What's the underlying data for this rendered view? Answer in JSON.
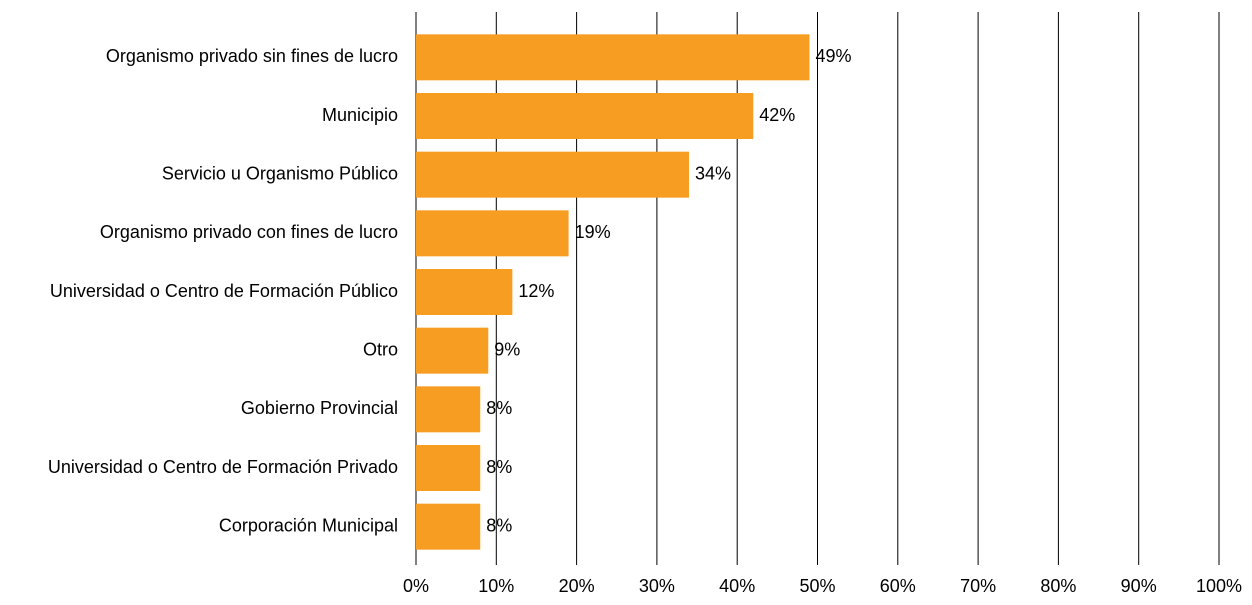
{
  "chart_data": {
    "type": "bar",
    "orientation": "horizontal",
    "categories": [
      "Organismo privado sin fines de lucro",
      "Municipio",
      "Servicio u Organismo Público",
      "Organismo privado con fines de lucro",
      "Universidad o Centro de Formación Público",
      "Otro",
      "Gobierno Provincial",
      "Universidad o Centro de Formación Privado",
      "Corporación Municipal"
    ],
    "values": [
      49,
      42,
      34,
      19,
      12,
      9,
      8,
      8,
      8
    ],
    "value_labels": [
      "49%",
      "42%",
      "34%",
      "19%",
      "12%",
      "9%",
      "8%",
      "8%",
      "8%"
    ],
    "color": "#f79d21",
    "xlim": [
      0,
      100
    ],
    "xticks": [
      {
        "value": 0,
        "label": "0%"
      },
      {
        "value": 10,
        "label": "10%"
      },
      {
        "value": 20,
        "label": "20%"
      },
      {
        "value": 30,
        "label": "30%"
      },
      {
        "value": 40,
        "label": "40%"
      },
      {
        "value": 50,
        "label": "50%"
      },
      {
        "value": 60,
        "label": "60%"
      },
      {
        "value": 70,
        "label": "70%"
      },
      {
        "value": 80,
        "label": "80%"
      },
      {
        "value": 90,
        "label": "90%"
      },
      {
        "value": 100,
        "label": "100%"
      }
    ],
    "grid": true
  }
}
